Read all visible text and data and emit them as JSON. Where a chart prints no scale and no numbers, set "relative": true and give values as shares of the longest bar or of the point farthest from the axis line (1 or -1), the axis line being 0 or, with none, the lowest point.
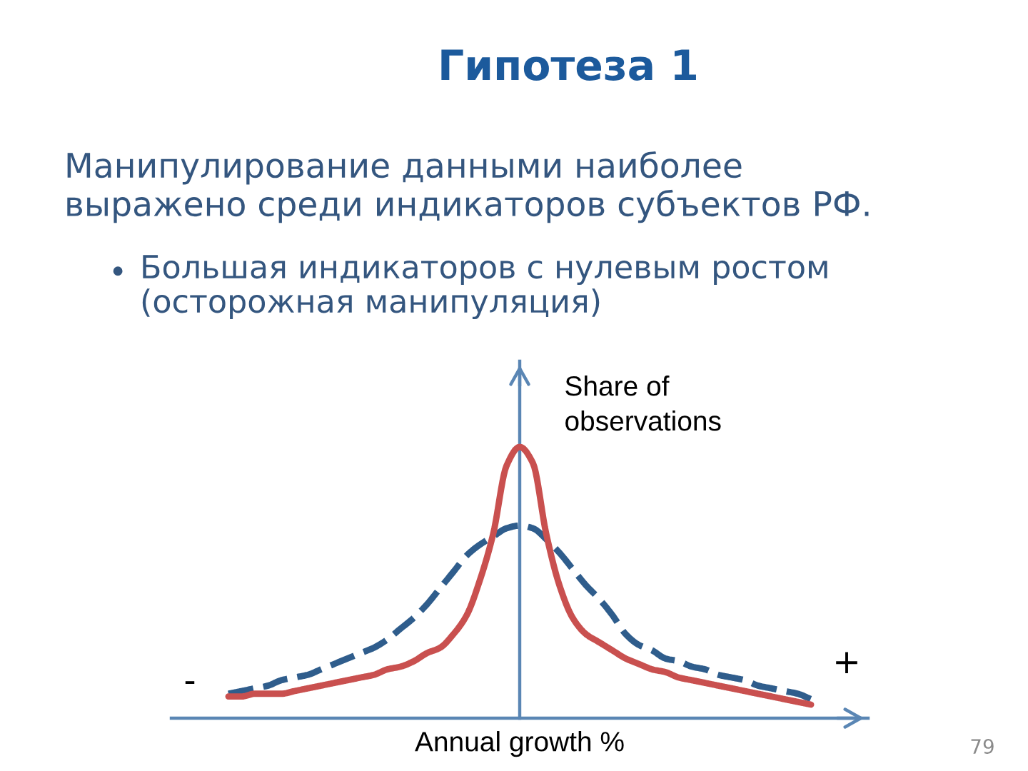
{
  "chart_data": {
    "type": "line",
    "relative": true,
    "title": "Гипотеза 1",
    "subtitle": "Манипулирование данными наиболее\nвыражено среди индикаторов субъектов РФ.",
    "xlabel": "Annual growth %",
    "ylabel": "Share of\nobservations",
    "annotations": [
      "•",
      "Большая индикаторов с нулевым ростом\n(осторожная манипуляция)",
      "-",
      "+",
      "79"
    ],
    "categories": [
      null,
      null,
      null,
      null,
      null,
      null,
      null,
      null,
      null,
      null,
      null,
      null,
      null,
      null,
      null,
      null,
      null,
      null,
      null,
      null,
      null,
      null,
      null,
      null,
      null,
      null,
      null,
      null,
      null,
      null,
      null,
      null,
      null,
      null,
      null,
      null,
      null,
      null,
      null,
      null,
      null,
      null,
      null,
      null,
      null
    ],
    "series": [
      {
        "color": "#c9504f",
        "line_style": "solid",
        "values": [
          0.08,
          0.08,
          0.09,
          0.09,
          0.09,
          0.1,
          0.11,
          0.12,
          0.13,
          0.14,
          0.15,
          0.16,
          0.18,
          0.19,
          0.21,
          0.24,
          0.26,
          0.31,
          0.38,
          0.51,
          0.68,
          0.93,
          1,
          0.94,
          0.68,
          0.49,
          0.37,
          0.31,
          0.28,
          0.25,
          0.22,
          0.2,
          0.18,
          0.17,
          0.15,
          0.14,
          0.13,
          0.12,
          0.11,
          0.1,
          0.09,
          0.08,
          0.07,
          0.06,
          0.05
        ]
      },
      {
        "color": "#2f5d8c",
        "line_style": "dashed",
        "values": [
          0.09,
          0.1,
          0.11,
          0.12,
          0.14,
          0.15,
          0.16,
          0.18,
          0.2,
          0.22,
          0.24,
          0.26,
          0.29,
          0.33,
          0.37,
          0.42,
          0.48,
          0.54,
          0.6,
          0.64,
          0.67,
          0.7,
          0.71,
          0.7,
          0.66,
          0.61,
          0.55,
          0.49,
          0.44,
          0.38,
          0.31,
          0.27,
          0.25,
          0.22,
          0.21,
          0.19,
          0.18,
          0.16,
          0.15,
          0.14,
          0.12,
          0.11,
          0.1,
          0.09,
          0.07
        ]
      }
    ]
  }
}
